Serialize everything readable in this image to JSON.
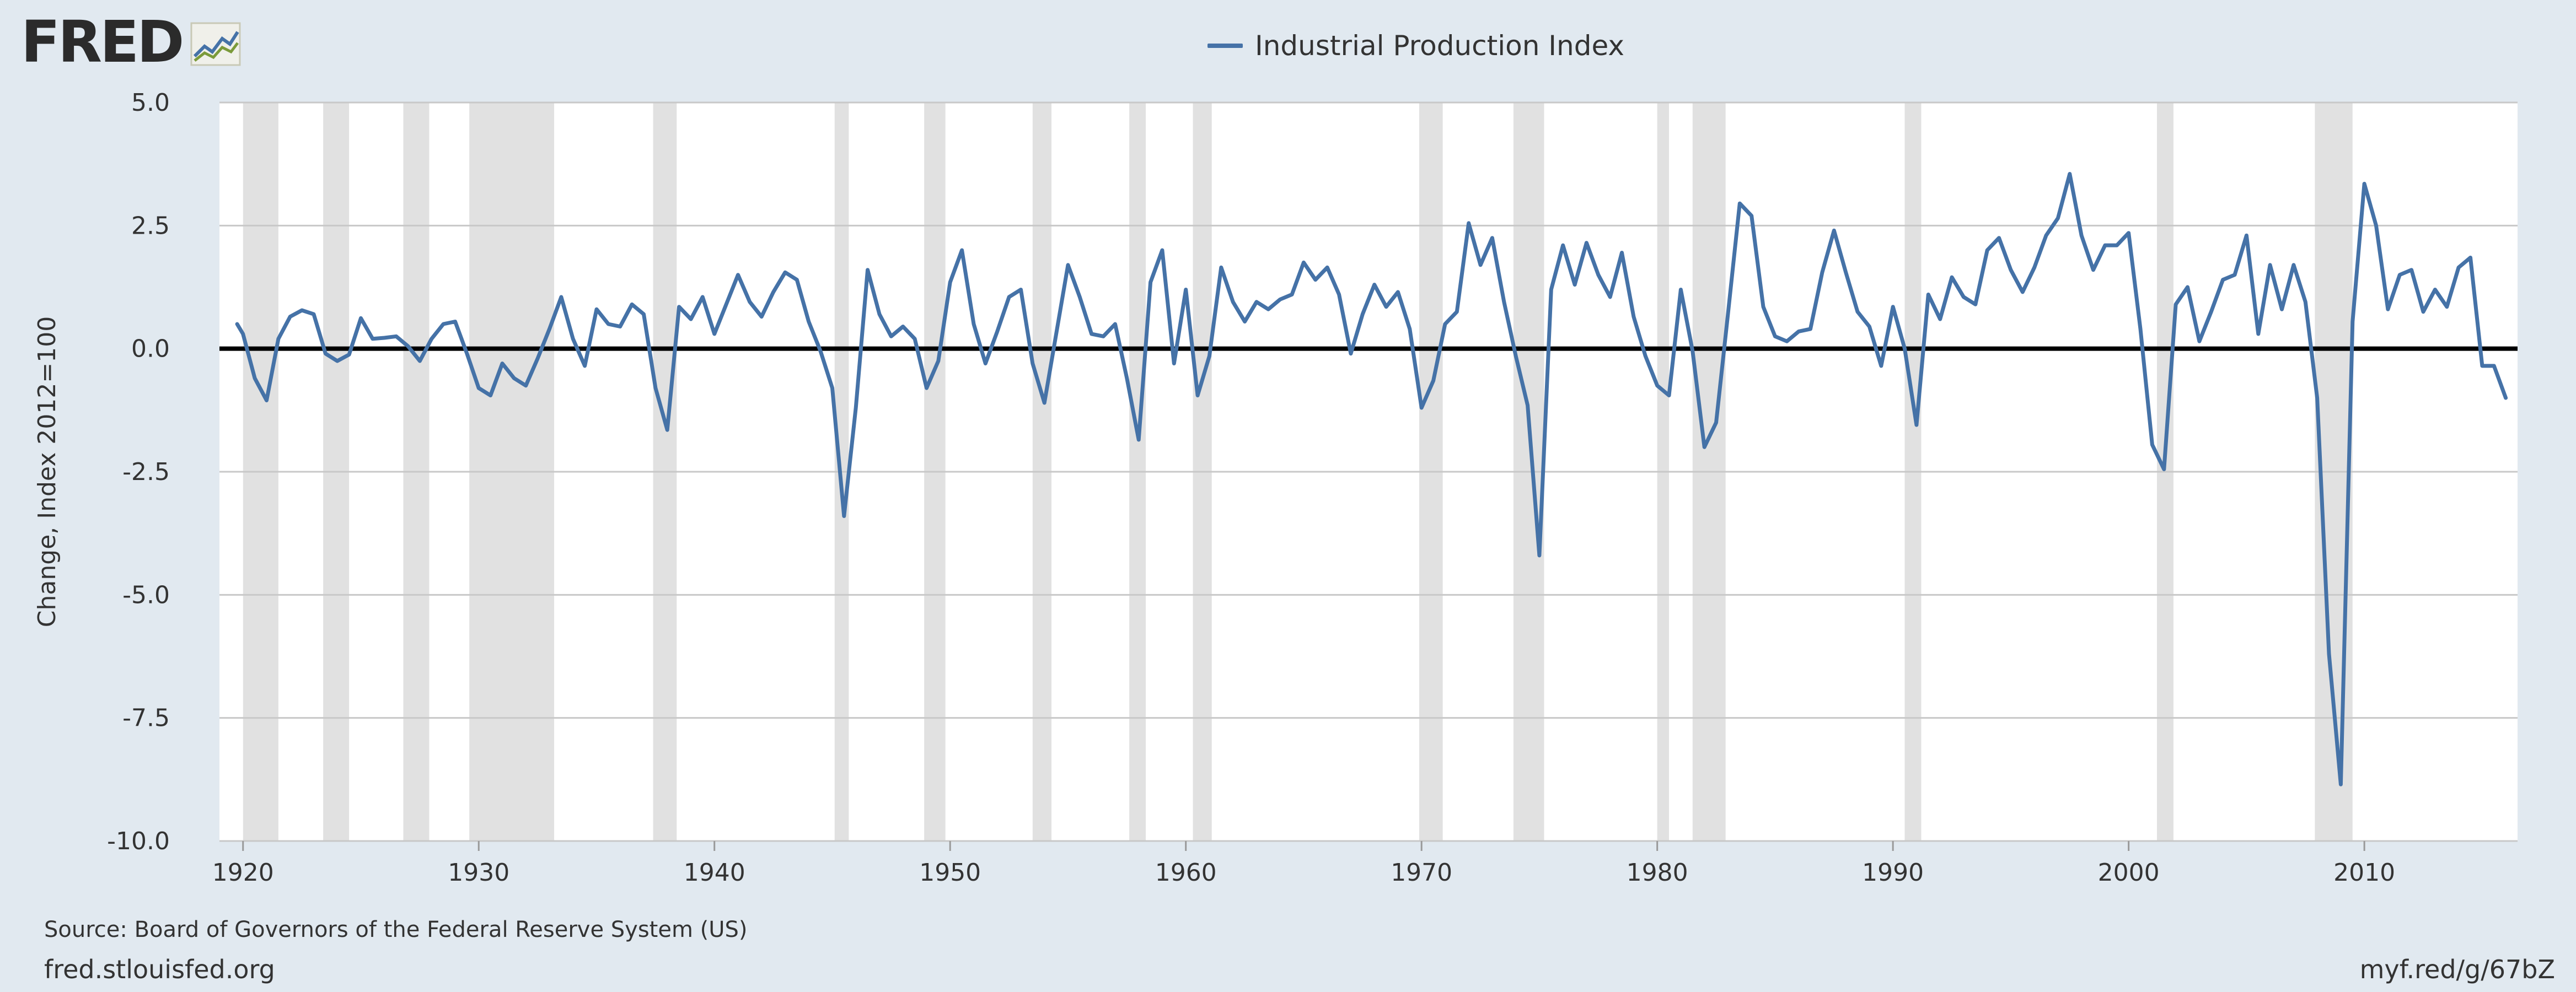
{
  "header": {
    "logo_text": "FRED",
    "logo_icon": "line-chart-icon",
    "legend_label": "Industrial Production Index",
    "series_color": "#4572a7"
  },
  "footer": {
    "source": "Source: Board of Governors of the Federal Reserve System (US)",
    "site": "fred.stlouisfed.org",
    "short_link": "myf.red/g/67bZ"
  },
  "colors": {
    "background": "#e1e9f0",
    "plot_background": "#ffffff",
    "recession_shading": "#e1e1e1",
    "gridline": "#c8c8c8",
    "zero_line": "#000000"
  },
  "chart_data": {
    "type": "line",
    "title": "",
    "xlabel": "",
    "ylabel": "Change, Index 2012=100",
    "xlim": [
      1919,
      2016.5
    ],
    "ylim": [
      -10,
      5
    ],
    "yticks": [
      5.0,
      2.5,
      0.0,
      -2.5,
      -5.0,
      -7.5,
      -10.0
    ],
    "yticklabels": [
      "5.0",
      "2.5",
      "0.0",
      "-2.5",
      "-5.0",
      "-7.5",
      "-10.0"
    ],
    "xticks": [
      1920,
      1930,
      1940,
      1950,
      1960,
      1970,
      1980,
      1990,
      2000,
      2010
    ],
    "xticklabels": [
      "1920",
      "1930",
      "1940",
      "1950",
      "1960",
      "1970",
      "1980",
      "1990",
      "2000",
      "2010"
    ],
    "grid": true,
    "zero_line": true,
    "legend": "top-center",
    "recessions": [
      [
        1920.0,
        1921.5
      ],
      [
        1923.4,
        1924.5
      ],
      [
        1926.8,
        1927.9
      ],
      [
        1929.6,
        1933.2
      ],
      [
        1937.4,
        1938.4
      ],
      [
        1945.1,
        1945.7
      ],
      [
        1948.9,
        1949.8
      ],
      [
        1953.5,
        1954.3
      ],
      [
        1957.6,
        1958.3
      ],
      [
        1960.3,
        1961.1
      ],
      [
        1969.9,
        1970.9
      ],
      [
        1973.9,
        1975.2
      ],
      [
        1980.0,
        1980.5
      ],
      [
        1981.5,
        1982.9
      ],
      [
        1990.5,
        1991.2
      ],
      [
        2001.2,
        2001.9
      ],
      [
        2007.9,
        2009.5
      ]
    ],
    "series": [
      {
        "name": "Industrial Production Index",
        "x": [
          1919.75,
          1920.0,
          1920.5,
          1921.0,
          1921.5,
          1922.0,
          1922.5,
          1923.0,
          1923.5,
          1924.0,
          1924.5,
          1925.0,
          1925.5,
          1926.0,
          1926.5,
          1927.0,
          1927.5,
          1928.0,
          1928.5,
          1929.0,
          1929.5,
          1930.0,
          1930.5,
          1931.0,
          1931.5,
          1932.0,
          1932.5,
          1933.0,
          1933.5,
          1934.0,
          1934.5,
          1935.0,
          1935.5,
          1936.0,
          1936.5,
          1937.0,
          1937.5,
          1938.0,
          1938.5,
          1939.0,
          1939.5,
          1940.0,
          1940.5,
          1941.0,
          1941.5,
          1942.0,
          1942.5,
          1943.0,
          1943.5,
          1944.0,
          1944.5,
          1945.0,
          1945.5,
          1946.0,
          1946.5,
          1947.0,
          1947.5,
          1948.0,
          1948.5,
          1949.0,
          1949.5,
          1950.0,
          1950.5,
          1951.0,
          1951.5,
          1952.0,
          1952.5,
          1953.0,
          1953.5,
          1954.0,
          1954.5,
          1955.0,
          1955.5,
          1956.0,
          1956.5,
          1957.0,
          1957.5,
          1958.0,
          1958.5,
          1959.0,
          1959.5,
          1960.0,
          1960.5,
          1961.0,
          1961.5,
          1962.0,
          1962.5,
          1963.0,
          1963.5,
          1964.0,
          1964.5,
          1965.0,
          1965.5,
          1966.0,
          1966.5,
          1967.0,
          1967.5,
          1968.0,
          1968.5,
          1969.0,
          1969.5,
          1970.0,
          1970.5,
          1971.0,
          1971.5,
          1972.0,
          1972.5,
          1973.0,
          1973.5,
          1974.0,
          1974.5,
          1975.0,
          1975.5,
          1976.0,
          1976.5,
          1977.0,
          1977.5,
          1978.0,
          1978.5,
          1979.0,
          1979.5,
          1980.0,
          1980.5,
          1981.0,
          1981.5,
          1982.0,
          1982.5,
          1983.0,
          1983.5,
          1984.0,
          1984.5,
          1985.0,
          1985.5,
          1986.0,
          1986.5,
          1987.0,
          1987.5,
          1988.0,
          1988.5,
          1989.0,
          1989.5,
          1990.0,
          1990.5,
          1991.0,
          1991.5,
          1992.0,
          1992.5,
          1993.0,
          1993.5,
          1994.0,
          1994.5,
          1995.0,
          1995.5,
          1996.0,
          1996.5,
          1997.0,
          1997.5,
          1998.0,
          1998.5,
          1999.0,
          1999.5,
          2000.0,
          2000.5,
          2001.0,
          2001.5,
          2002.0,
          2002.5,
          2003.0,
          2003.5,
          2004.0,
          2004.5,
          2005.0,
          2005.5,
          2006.0,
          2006.5,
          2007.0,
          2007.5,
          2008.0,
          2008.5,
          2009.0,
          2009.5,
          2010.0,
          2010.5,
          2011.0,
          2011.5,
          2012.0,
          2012.5,
          2013.0,
          2013.5,
          2014.0,
          2014.5,
          2015.0,
          2015.5,
          2016.0
        ],
        "y": [
          0.5,
          0.3,
          -0.6,
          -1.05,
          0.2,
          0.65,
          0.78,
          0.7,
          -0.1,
          -0.25,
          -0.12,
          0.62,
          0.2,
          0.22,
          0.25,
          0.05,
          -0.25,
          0.2,
          0.5,
          0.55,
          -0.1,
          -0.8,
          -0.95,
          -0.3,
          -0.6,
          -0.75,
          -0.2,
          0.4,
          1.05,
          0.2,
          -0.35,
          0.8,
          0.5,
          0.45,
          0.9,
          0.7,
          -0.8,
          -1.65,
          0.85,
          0.6,
          1.05,
          0.3,
          0.9,
          1.5,
          0.95,
          0.65,
          1.15,
          1.55,
          1.4,
          0.55,
          -0.05,
          -0.8,
          -3.4,
          -1.2,
          1.6,
          0.7,
          0.25,
          0.45,
          0.2,
          -0.8,
          -0.25,
          1.35,
          2.0,
          0.5,
          -0.3,
          0.35,
          1.05,
          1.2,
          -0.3,
          -1.1,
          0.3,
          1.7,
          1.05,
          0.3,
          0.25,
          0.5,
          -0.6,
          -1.85,
          1.35,
          2.0,
          -0.3,
          1.2,
          -0.95,
          -0.15,
          1.65,
          0.95,
          0.55,
          0.95,
          0.8,
          1.0,
          1.1,
          1.75,
          1.4,
          1.65,
          1.1,
          -0.1,
          0.7,
          1.3,
          0.85,
          1.15,
          0.4,
          -1.2,
          -0.65,
          0.5,
          0.75,
          2.55,
          1.7,
          2.25,
          0.95,
          -0.15,
          -1.15,
          -4.2,
          1.2,
          2.1,
          1.3,
          2.15,
          1.5,
          1.05,
          1.95,
          0.65,
          -0.15,
          -0.75,
          -0.95,
          1.2,
          -0.05,
          -2.0,
          -1.5,
          0.7,
          2.95,
          2.7,
          0.85,
          0.25,
          0.15,
          0.35,
          0.4,
          1.55,
          2.4,
          1.55,
          0.75,
          0.45,
          -0.35,
          0.85,
          0.0,
          -1.55,
          1.1,
          0.6,
          1.45,
          1.05,
          0.9,
          2.0,
          2.25,
          1.6,
          1.15,
          1.65,
          2.3,
          2.65,
          3.55,
          2.3,
          1.6,
          2.1,
          2.1,
          2.35,
          0.4,
          -1.95,
          -2.45,
          0.9,
          1.25,
          0.15,
          0.75,
          1.4,
          1.5,
          2.3,
          0.3,
          1.7,
          0.8,
          1.7,
          0.95,
          -1.0,
          -6.2,
          -8.85,
          0.55,
          3.35,
          2.5,
          0.8,
          1.5,
          1.6,
          0.75,
          1.2,
          0.85,
          1.65,
          1.85,
          -0.35,
          -0.35,
          -1.0
        ]
      }
    ]
  }
}
